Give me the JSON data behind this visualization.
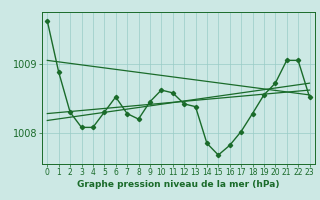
{
  "bg_color": "#cce8e4",
  "grid_color": "#99ccc6",
  "line_color": "#1a6b2a",
  "xlabel": "Graphe pression niveau de la mer (hPa)",
  "xlim": [
    -0.5,
    23.5
  ],
  "ylim": [
    1007.55,
    1009.75
  ],
  "yticks": [
    1008,
    1009
  ],
  "xticks": [
    0,
    1,
    2,
    3,
    4,
    5,
    6,
    7,
    8,
    9,
    10,
    11,
    12,
    13,
    14,
    15,
    16,
    17,
    18,
    19,
    20,
    21,
    22,
    23
  ],
  "main_x": [
    0,
    1,
    2,
    3,
    4,
    5,
    6,
    7,
    8,
    9,
    10,
    11,
    12,
    13,
    14,
    15,
    16,
    17,
    18,
    19,
    20,
    21,
    22,
    23
  ],
  "main_y": [
    1009.62,
    1008.88,
    1008.3,
    1008.08,
    1008.08,
    1008.3,
    1008.52,
    1008.28,
    1008.2,
    1008.45,
    1008.62,
    1008.58,
    1008.42,
    1008.38,
    1007.85,
    1007.68,
    1007.82,
    1008.02,
    1008.28,
    1008.55,
    1008.72,
    1009.05,
    1009.05,
    1008.52
  ],
  "trend1_x": [
    0,
    23
  ],
  "trend1_y": [
    1008.28,
    1008.62
  ],
  "trend2_x": [
    0,
    23
  ],
  "trend2_y": [
    1008.18,
    1008.72
  ],
  "upper_line_x": [
    0,
    23
  ],
  "upper_line_y": [
    1009.05,
    1008.55
  ],
  "tick_fontsize": 5.5,
  "ytick_fontsize": 7.0,
  "xlabel_fontsize": 6.5
}
